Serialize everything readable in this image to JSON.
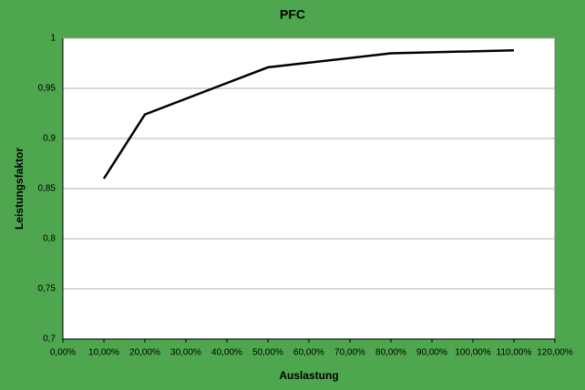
{
  "chart_data": {
    "type": "line",
    "title": "PFC",
    "x_label": "Auslastung",
    "y_label": "Leistungsfaktor",
    "x": [
      10,
      20,
      50,
      80,
      110
    ],
    "series": [
      {
        "name": "PFC",
        "color": "#000000",
        "values": [
          0.86,
          0.924,
          0.971,
          0.985,
          0.988
        ]
      }
    ],
    "xlim": [
      0,
      120
    ],
    "xticks": [
      {
        "value": 0,
        "label": "0,00%"
      },
      {
        "value": 10,
        "label": "10,00%"
      },
      {
        "value": 20,
        "label": "20,00%"
      },
      {
        "value": 30,
        "label": "30,00%"
      },
      {
        "value": 40,
        "label": "40,00%"
      },
      {
        "value": 50,
        "label": "50,00%"
      },
      {
        "value": 60,
        "label": "60,00%"
      },
      {
        "value": 70,
        "label": "70,00%"
      },
      {
        "value": 80,
        "label": "80,00%"
      },
      {
        "value": 90,
        "label": "90,00%"
      },
      {
        "value": 100,
        "label": "100,00%"
      },
      {
        "value": 110,
        "label": "110,00%"
      },
      {
        "value": 120,
        "label": "120,00%"
      }
    ],
    "ylim": [
      0.7,
      1
    ],
    "yticks": [
      {
        "value": 0.7,
        "label": "0,7"
      },
      {
        "value": 0.75,
        "label": "0,75"
      },
      {
        "value": 0.8,
        "label": "0,8"
      },
      {
        "value": 0.85,
        "label": "0,85"
      },
      {
        "value": 0.9,
        "label": "0,9"
      },
      {
        "value": 0.95,
        "label": "0,95"
      },
      1
    ],
    "grid": true
  }
}
